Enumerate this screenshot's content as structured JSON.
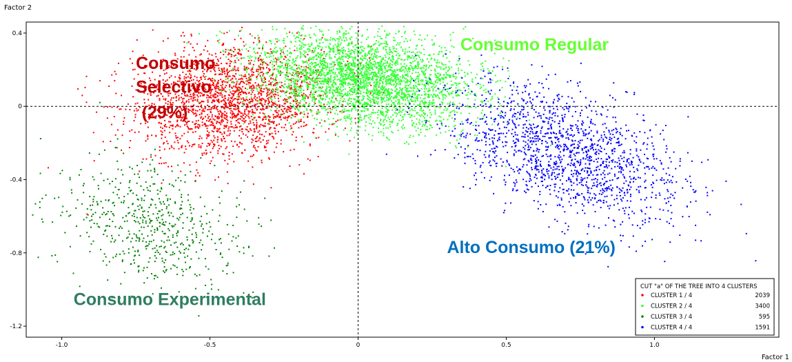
{
  "chart_data": {
    "type": "scatter",
    "xlabel": "Factor 1",
    "ylabel": "Factor 2",
    "xlim": [
      -1.12,
      1.42
    ],
    "ylim": [
      -1.26,
      0.46
    ],
    "x_ticks": [
      "-1.0",
      "-0.5",
      "0",
      "0.5",
      "1.0"
    ],
    "x_tick_values": [
      -1.0,
      -0.5,
      0,
      0.5,
      1.0
    ],
    "y_ticks": [
      "0.4",
      "0",
      "-0.4",
      "-0.8",
      "-1.2"
    ],
    "y_tick_values": [
      0.4,
      0,
      -0.4,
      -0.8,
      -1.2
    ],
    "reference_lines": [
      "x=0 dashed",
      "y=0 dashed"
    ],
    "annotations": [
      {
        "text": "Consumo",
        "color": "#c00000",
        "x": -0.75,
        "y": 0.205
      },
      {
        "text": "Selectivo",
        "color": "#c00000",
        "x": -0.75,
        "y": 0.075
      },
      {
        "text": "(29%)",
        "color": "#c00000",
        "x": -0.73,
        "y": -0.065
      },
      {
        "text": "Consumo Regular",
        "color": "#66ff33",
        "x": 0.345,
        "y": 0.305
      },
      {
        "text": "Alto Consumo (21%)",
        "color": "#0070c0",
        "x": 0.3,
        "y": -0.8
      },
      {
        "text": "Consumo Experimental",
        "color": "#2e7d60",
        "x": -0.96,
        "y": -1.085
      }
    ],
    "legend": {
      "title": "CUT \"a\" OF THE TREE INTO 4 CLUSTERS",
      "position": "bottom-right",
      "entries": [
        {
          "label": "CLUSTER 1 / 4",
          "count": "2039",
          "color": "#ff0000"
        },
        {
          "label": "CLUSTER 2 / 4",
          "count": "3400",
          "color": "#33ff33"
        },
        {
          "label": "CLUSTER 3 / 4",
          "count": "595",
          "color": "#008000"
        },
        {
          "label": "CLUSTER 4 / 4",
          "count": "1591",
          "color": "#0000ff"
        }
      ]
    },
    "series": [
      {
        "name": "CLUSTER 1 / 4",
        "color": "#ff0000",
        "count": 2039,
        "center": [
          -0.43,
          0.03
        ],
        "spread": [
          0.17,
          0.15
        ],
        "tilt": 0.35
      },
      {
        "name": "CLUSTER 2 / 4",
        "color": "#33ff33",
        "count": 3400,
        "center": [
          0.02,
          0.15
        ],
        "spread": [
          0.19,
          0.12
        ],
        "tilt": -0.3
      },
      {
        "name": "CLUSTER 3 / 4",
        "color": "#008000",
        "count": 595,
        "center": [
          -0.7,
          -0.66
        ],
        "spread": [
          0.14,
          0.19
        ],
        "tilt": 0.55
      },
      {
        "name": "CLUSTER 4 / 4",
        "color": "#0000ff",
        "count": 1591,
        "center": [
          0.7,
          -0.25
        ],
        "spread": [
          0.24,
          0.13
        ],
        "tilt": -0.75
      }
    ]
  }
}
